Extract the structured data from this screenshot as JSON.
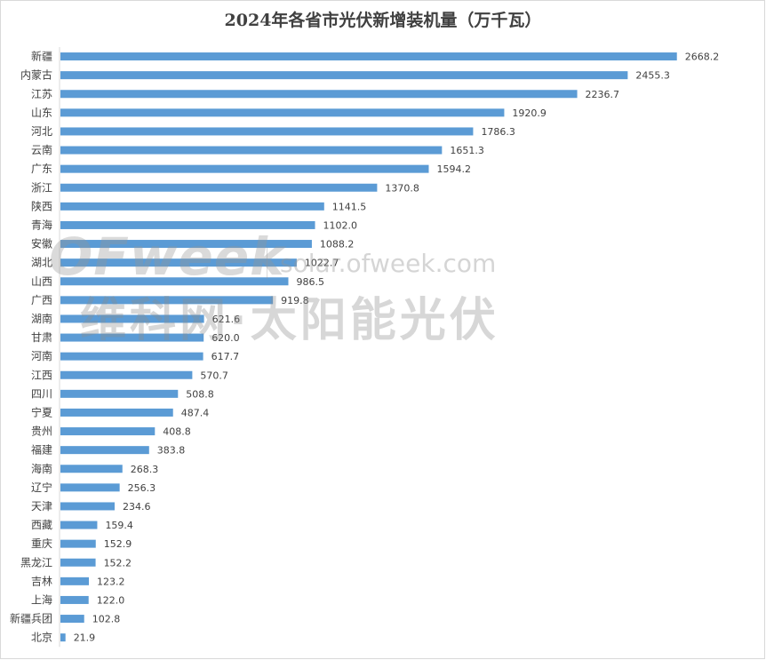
{
  "chart_data": {
    "type": "bar",
    "orientation": "horizontal",
    "title": "2024年各省市光伏新增装机量（万千瓦）",
    "categories": [
      "新疆",
      "内蒙古",
      "江苏",
      "山东",
      "河北",
      "云南",
      "广东",
      "浙江",
      "陕西",
      "青海",
      "安徽",
      "湖北",
      "山西",
      "广西",
      "湖南",
      "甘肃",
      "河南",
      "江西",
      "四川",
      "宁夏",
      "贵州",
      "福建",
      "海南",
      "辽宁",
      "天津",
      "西藏",
      "重庆",
      "黑龙江",
      "吉林",
      "上海",
      "新疆兵团",
      "北京"
    ],
    "values": [
      2668.2,
      2455.3,
      2236.7,
      1920.9,
      1786.3,
      1651.3,
      1594.2,
      1370.8,
      1141.5,
      1102.0,
      1088.2,
      1022.7,
      986.5,
      919.8,
      621.6,
      620.0,
      617.7,
      570.7,
      508.8,
      487.4,
      408.8,
      383.8,
      268.3,
      256.3,
      234.6,
      159.4,
      152.9,
      152.2,
      123.2,
      122.0,
      102.8,
      21.9
    ],
    "value_labels": [
      "2668.2",
      "2455.3",
      "2236.7",
      "1920.9",
      "1786.3",
      "1651.3",
      "1594.2",
      "1370.8",
      "1141.5",
      "1102.0",
      "1088.2",
      "1022.7",
      "986.5",
      "919.8",
      "621.6",
      "620.0",
      "617.7",
      "570.7",
      "508.8",
      "487.4",
      "408.8",
      "383.8",
      "268.3",
      "256.3",
      "234.6",
      "159.4",
      "152.9",
      "152.2",
      "123.2",
      "122.0",
      "102.8",
      "21.9"
    ],
    "xlim": [
      0,
      2750
    ],
    "grid": false,
    "legend": "none",
    "bar_color": "#5b9bd5"
  },
  "watermark": {
    "logo": "OFweek",
    "url": "solar.ofweek.com",
    "cn": "维科网·太阳能光伏"
  }
}
